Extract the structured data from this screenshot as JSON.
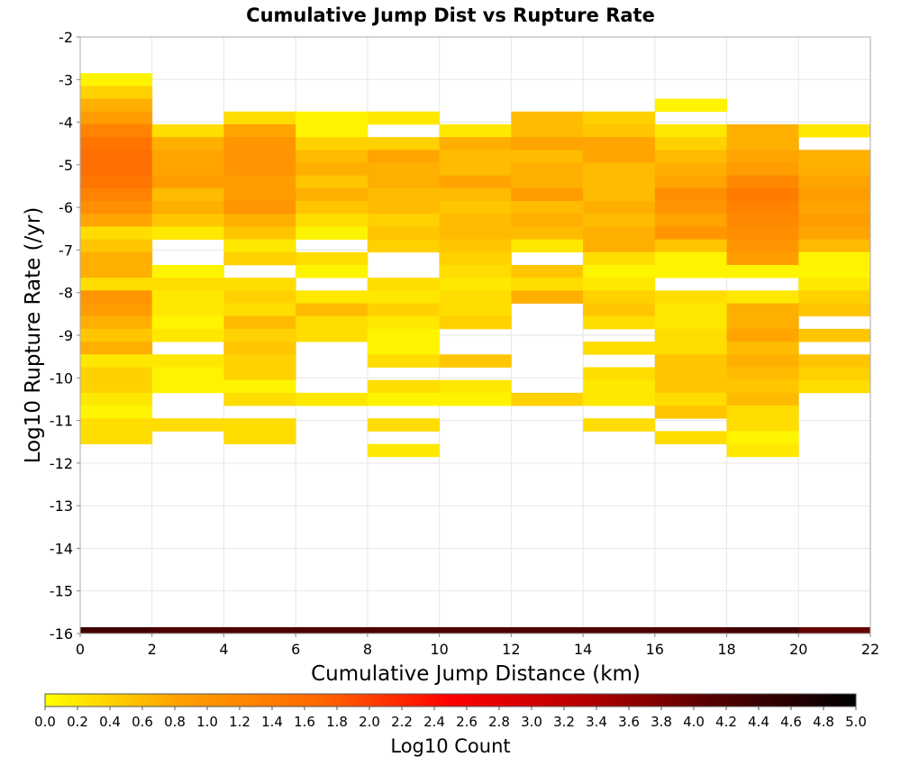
{
  "chart_data": {
    "type": "heatmap",
    "title": "Cumulative Jump Dist vs Rupture Rate",
    "xlabel": "Cumulative Jump Distance (km)",
    "ylabel": "Log10 Rupture Rate (/yr)",
    "xlim": [
      0,
      22
    ],
    "ylim": [
      -16,
      -2
    ],
    "x_ticks": [
      0,
      2,
      4,
      6,
      8,
      10,
      12,
      14,
      16,
      18,
      20,
      22
    ],
    "y_ticks": [
      -2,
      -3,
      -4,
      -5,
      -6,
      -7,
      -8,
      -9,
      -10,
      -11,
      -12,
      -13,
      -14,
      -15,
      -16
    ],
    "x_bin_width": 2,
    "y_bin_height": 0.3,
    "grid": true,
    "colorbar": {
      "label": "Log10 Count",
      "min": 0.0,
      "max": 5.0,
      "ticks": [
        "0.0",
        "0.2",
        "0.4",
        "0.6",
        "0.8",
        "1.0",
        "1.2",
        "1.4",
        "1.6",
        "1.8",
        "2.0",
        "2.2",
        "2.4",
        "2.6",
        "2.8",
        "3.0",
        "3.2",
        "3.4",
        "3.6",
        "3.8",
        "4.0",
        "4.2",
        "4.4",
        "4.6",
        "4.8",
        "5.0"
      ],
      "colors": [
        "#ffff00",
        "#ffa000",
        "#ff6a00",
        "#ff0000",
        "#b40000",
        "#500000",
        "#000000"
      ]
    },
    "columns": [
      {
        "x": 0,
        "cells": [
          [
            -3.0,
            0.1
          ],
          [
            -3.3,
            0.4
          ],
          [
            -3.6,
            0.7
          ],
          [
            -3.9,
            0.9
          ],
          [
            -4.2,
            1.3
          ],
          [
            -4.5,
            1.5
          ],
          [
            -4.8,
            1.6
          ],
          [
            -5.1,
            1.6
          ],
          [
            -5.4,
            1.5
          ],
          [
            -5.7,
            1.3
          ],
          [
            -6.0,
            1.1
          ],
          [
            -6.3,
            0.8
          ],
          [
            -6.6,
            0.3
          ],
          [
            -6.9,
            0.5
          ],
          [
            -7.2,
            0.7
          ],
          [
            -7.5,
            0.7
          ],
          [
            -7.8,
            0.3
          ],
          [
            -8.1,
            1.0
          ],
          [
            -8.4,
            0.9
          ],
          [
            -8.7,
            0.7
          ],
          [
            -9.0,
            0.5
          ],
          [
            -9.3,
            0.7
          ],
          [
            -9.6,
            0.2
          ],
          [
            -9.9,
            0.4
          ],
          [
            -10.2,
            0.4
          ],
          [
            -10.5,
            0.2
          ],
          [
            -10.8,
            0.1
          ],
          [
            -11.1,
            0.3
          ],
          [
            -11.4,
            0.3
          ]
        ]
      },
      {
        "x": 2,
        "cells": [
          [
            -4.2,
            0.3
          ],
          [
            -4.5,
            0.7
          ],
          [
            -4.8,
            0.8
          ],
          [
            -5.1,
            0.8
          ],
          [
            -5.4,
            0.9
          ],
          [
            -5.7,
            0.6
          ],
          [
            -6.0,
            0.7
          ],
          [
            -6.3,
            0.5
          ],
          [
            -6.6,
            0.2
          ],
          [
            -7.5,
            0.1
          ],
          [
            -7.8,
            0.3
          ],
          [
            -8.1,
            0.2
          ],
          [
            -8.4,
            0.2
          ],
          [
            -8.7,
            0.1
          ],
          [
            -9.0,
            0.2
          ],
          [
            -9.6,
            0.2
          ],
          [
            -9.9,
            0.1
          ],
          [
            -10.2,
            0.1
          ],
          [
            -11.1,
            0.3
          ]
        ]
      },
      {
        "x": 4,
        "cells": [
          [
            -3.9,
            0.3
          ],
          [
            -4.2,
            0.8
          ],
          [
            -4.5,
            1.0
          ],
          [
            -4.8,
            1.0
          ],
          [
            -5.1,
            1.0
          ],
          [
            -5.4,
            0.9
          ],
          [
            -5.7,
            0.9
          ],
          [
            -6.0,
            1.0
          ],
          [
            -6.3,
            0.7
          ],
          [
            -6.6,
            0.5
          ],
          [
            -6.9,
            0.2
          ],
          [
            -7.2,
            0.4
          ],
          [
            -7.8,
            0.3
          ],
          [
            -8.1,
            0.4
          ],
          [
            -8.4,
            0.3
          ],
          [
            -8.7,
            0.6
          ],
          [
            -9.0,
            0.4
          ],
          [
            -9.3,
            0.5
          ],
          [
            -9.6,
            0.4
          ],
          [
            -9.9,
            0.4
          ],
          [
            -10.2,
            0.1
          ],
          [
            -10.5,
            0.3
          ],
          [
            -11.1,
            0.3
          ],
          [
            -11.4,
            0.3
          ]
        ]
      },
      {
        "x": 6,
        "cells": [
          [
            -3.9,
            0.1
          ],
          [
            -4.2,
            0.1
          ],
          [
            -4.5,
            0.4
          ],
          [
            -4.8,
            0.6
          ],
          [
            -5.1,
            0.7
          ],
          [
            -5.4,
            0.5
          ],
          [
            -5.7,
            0.7
          ],
          [
            -6.0,
            0.5
          ],
          [
            -6.3,
            0.3
          ],
          [
            -6.6,
            0.1
          ],
          [
            -7.2,
            0.3
          ],
          [
            -7.5,
            0.1
          ],
          [
            -8.1,
            0.2
          ],
          [
            -8.4,
            0.6
          ],
          [
            -8.7,
            0.3
          ],
          [
            -9.0,
            0.3
          ],
          [
            -10.5,
            0.2
          ]
        ]
      },
      {
        "x": 8,
        "cells": [
          [
            -3.9,
            0.2
          ],
          [
            -4.5,
            0.4
          ],
          [
            -4.8,
            0.8
          ],
          [
            -5.1,
            0.7
          ],
          [
            -5.4,
            0.7
          ],
          [
            -5.7,
            0.6
          ],
          [
            -6.0,
            0.6
          ],
          [
            -6.3,
            0.4
          ],
          [
            -6.6,
            0.5
          ],
          [
            -6.9,
            0.4
          ],
          [
            -7.8,
            0.3
          ],
          [
            -8.1,
            0.2
          ],
          [
            -8.4,
            0.4
          ],
          [
            -8.7,
            0.2
          ],
          [
            -9.0,
            0.1
          ],
          [
            -9.3,
            0.1
          ],
          [
            -9.6,
            0.3
          ],
          [
            -10.2,
            0.3
          ],
          [
            -10.5,
            0.1
          ],
          [
            -11.1,
            0.3
          ],
          [
            -11.7,
            0.2
          ]
        ]
      },
      {
        "x": 10,
        "cells": [
          [
            -4.2,
            0.2
          ],
          [
            -4.5,
            0.7
          ],
          [
            -4.8,
            0.6
          ],
          [
            -5.1,
            0.6
          ],
          [
            -5.4,
            0.8
          ],
          [
            -5.7,
            0.6
          ],
          [
            -6.0,
            0.5
          ],
          [
            -6.3,
            0.6
          ],
          [
            -6.6,
            0.6
          ],
          [
            -6.9,
            0.5
          ],
          [
            -7.2,
            0.4
          ],
          [
            -7.5,
            0.3
          ],
          [
            -7.8,
            0.2
          ],
          [
            -8.1,
            0.3
          ],
          [
            -8.4,
            0.3
          ],
          [
            -8.7,
            0.4
          ],
          [
            -9.6,
            0.5
          ],
          [
            -10.2,
            0.2
          ],
          [
            -10.5,
            0.1
          ]
        ]
      },
      {
        "x": 12,
        "cells": [
          [
            -3.9,
            0.6
          ],
          [
            -4.2,
            0.6
          ],
          [
            -4.5,
            0.8
          ],
          [
            -4.8,
            0.6
          ],
          [
            -5.1,
            0.7
          ],
          [
            -5.4,
            0.7
          ],
          [
            -5.7,
            0.9
          ],
          [
            -6.0,
            0.6
          ],
          [
            -6.3,
            0.7
          ],
          [
            -6.6,
            0.6
          ],
          [
            -6.9,
            0.2
          ],
          [
            -7.5,
            0.5
          ],
          [
            -7.8,
            0.3
          ],
          [
            -8.1,
            0.7
          ],
          [
            -10.5,
            0.4
          ]
        ]
      },
      {
        "x": 14,
        "cells": [
          [
            -3.9,
            0.4
          ],
          [
            -4.2,
            0.5
          ],
          [
            -4.5,
            0.8
          ],
          [
            -4.8,
            0.8
          ],
          [
            -5.1,
            0.6
          ],
          [
            -5.4,
            0.6
          ],
          [
            -5.7,
            0.6
          ],
          [
            -6.0,
            0.7
          ],
          [
            -6.3,
            0.6
          ],
          [
            -6.6,
            0.7
          ],
          [
            -6.9,
            0.7
          ],
          [
            -7.2,
            0.3
          ],
          [
            -7.5,
            0.1
          ],
          [
            -7.8,
            0.2
          ],
          [
            -8.1,
            0.4
          ],
          [
            -8.4,
            0.5
          ],
          [
            -8.7,
            0.3
          ],
          [
            -9.3,
            0.3
          ],
          [
            -9.9,
            0.3
          ],
          [
            -10.2,
            0.2
          ],
          [
            -10.5,
            0.2
          ],
          [
            -11.1,
            0.3
          ]
        ]
      },
      {
        "x": 16,
        "cells": [
          [
            -3.6,
            0.1
          ],
          [
            -4.2,
            0.2
          ],
          [
            -4.5,
            0.4
          ],
          [
            -4.8,
            0.6
          ],
          [
            -5.1,
            0.7
          ],
          [
            -5.4,
            0.8
          ],
          [
            -5.7,
            1.1
          ],
          [
            -6.0,
            1.0
          ],
          [
            -6.3,
            0.8
          ],
          [
            -6.6,
            1.0
          ],
          [
            -6.9,
            0.5
          ],
          [
            -7.2,
            0.1
          ],
          [
            -7.5,
            0.1
          ],
          [
            -8.1,
            0.3
          ],
          [
            -8.4,
            0.2
          ],
          [
            -8.7,
            0.2
          ],
          [
            -9.0,
            0.3
          ],
          [
            -9.3,
            0.3
          ],
          [
            -9.6,
            0.5
          ],
          [
            -9.9,
            0.5
          ],
          [
            -10.2,
            0.5
          ],
          [
            -10.5,
            0.3
          ],
          [
            -10.8,
            0.5
          ],
          [
            -11.4,
            0.3
          ]
        ]
      },
      {
        "x": 18,
        "cells": [
          [
            -4.2,
            0.7
          ],
          [
            -4.5,
            0.7
          ],
          [
            -4.8,
            0.8
          ],
          [
            -5.1,
            0.9
          ],
          [
            -5.4,
            1.2
          ],
          [
            -5.7,
            1.4
          ],
          [
            -6.0,
            1.3
          ],
          [
            -6.3,
            1.2
          ],
          [
            -6.6,
            1.1
          ],
          [
            -6.9,
            1.0
          ],
          [
            -7.2,
            0.9
          ],
          [
            -7.5,
            0.1
          ],
          [
            -8.1,
            0.2
          ],
          [
            -8.4,
            0.7
          ],
          [
            -8.7,
            0.7
          ],
          [
            -9.0,
            0.8
          ],
          [
            -9.3,
            0.6
          ],
          [
            -9.6,
            0.7
          ],
          [
            -9.9,
            0.6
          ],
          [
            -10.2,
            0.5
          ],
          [
            -10.5,
            0.6
          ],
          [
            -10.8,
            0.3
          ],
          [
            -11.1,
            0.3
          ],
          [
            -11.4,
            0.1
          ],
          [
            -11.7,
            0.2
          ]
        ]
      },
      {
        "x": 20,
        "cells": [
          [
            -4.2,
            0.2
          ],
          [
            -4.8,
            0.7
          ],
          [
            -5.1,
            0.7
          ],
          [
            -5.4,
            0.8
          ],
          [
            -5.7,
            0.9
          ],
          [
            -6.0,
            0.8
          ],
          [
            -6.3,
            0.9
          ],
          [
            -6.6,
            0.8
          ],
          [
            -6.9,
            0.6
          ],
          [
            -7.2,
            0.1
          ],
          [
            -7.5,
            0.1
          ],
          [
            -7.8,
            0.2
          ],
          [
            -8.1,
            0.4
          ],
          [
            -8.4,
            0.5
          ],
          [
            -9.0,
            0.5
          ],
          [
            -9.6,
            0.5
          ],
          [
            -9.9,
            0.4
          ],
          [
            -10.2,
            0.3
          ]
        ]
      }
    ],
    "baseline_row": {
      "y": -16,
      "x": [
        0,
        2,
        4,
        6,
        8,
        10,
        12,
        14,
        16,
        18,
        20
      ],
      "values": [
        4.3,
        4.2,
        4.2,
        4.2,
        4.2,
        4.2,
        4.2,
        4.2,
        4.2,
        4.3,
        4.0
      ]
    }
  }
}
